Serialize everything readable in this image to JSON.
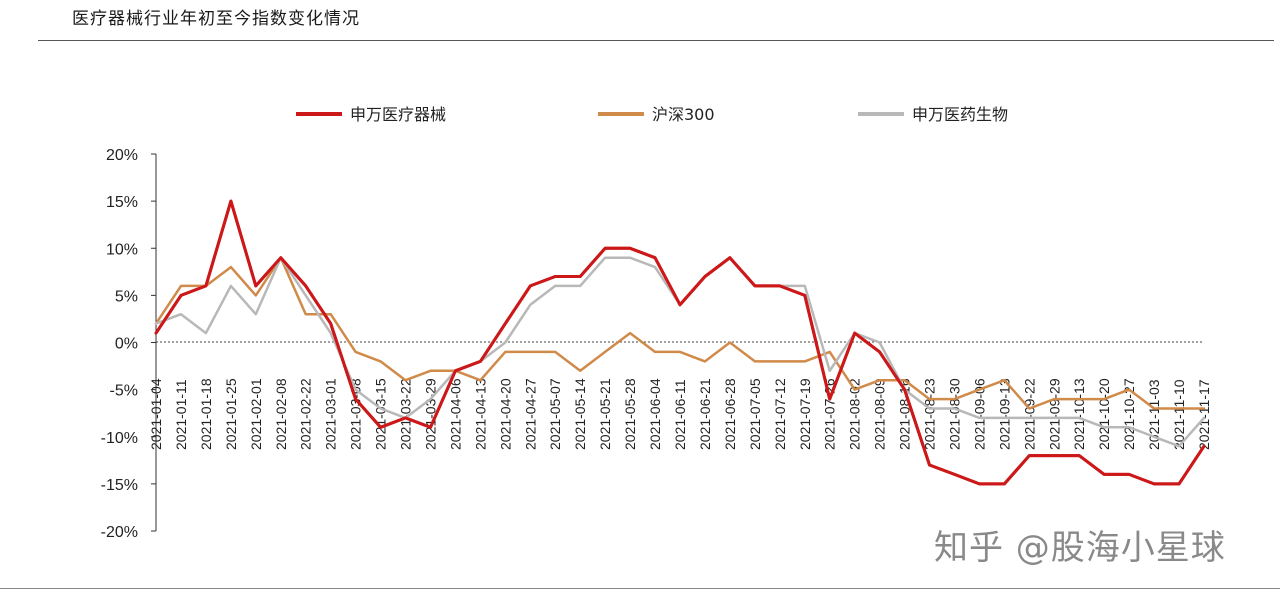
{
  "page_title": "医疗器械行业年初至今指数变化情况",
  "watermark": "知乎 @股海小星球",
  "chart_data": {
    "type": "line",
    "title": "",
    "xlabel": "",
    "ylabel": "",
    "ylim": [
      -20,
      20
    ],
    "yticks": [
      20,
      15,
      10,
      5,
      0,
      -5,
      -10,
      -15,
      -20
    ],
    "ytick_labels": [
      "20%",
      "15%",
      "10%",
      "5%",
      "0%",
      "-5%",
      "-10%",
      "-15%",
      "-20%"
    ],
    "grid": false,
    "legend_position": "top",
    "colors": {
      "red": "#cc1818",
      "orange": "#d08a4a",
      "gray": "#b8b8b8"
    },
    "x": [
      "2021-01-04",
      "2021-01-11",
      "2021-01-18",
      "2021-01-25",
      "2021-02-01",
      "2021-02-08",
      "2021-02-22",
      "2021-03-01",
      "2021-03-08",
      "2021-03-15",
      "2021-03-22",
      "2021-03-29",
      "2021-04-06",
      "2021-04-13",
      "2021-04-20",
      "2021-04-27",
      "2021-05-07",
      "2021-05-14",
      "2021-05-21",
      "2021-05-28",
      "2021-06-04",
      "2021-06-11",
      "2021-06-21",
      "2021-06-28",
      "2021-07-05",
      "2021-07-12",
      "2021-07-19",
      "2021-07-26",
      "2021-08-02",
      "2021-08-09",
      "2021-08-16",
      "2021-08-23",
      "2021-08-30",
      "2021-09-06",
      "2021-09-13",
      "2021-09-22",
      "2021-09-29",
      "2021-10-13",
      "2021-10-20",
      "2021-10-27",
      "2021-11-03",
      "2021-11-10",
      "2021-11-17"
    ],
    "series": [
      {
        "name": "申万医疗器械",
        "color": "#cc1818",
        "values": [
          1,
          5,
          6,
          15,
          6,
          9,
          6,
          2,
          -6,
          -9,
          -8,
          -9,
          -3,
          -2,
          2,
          6,
          7,
          7,
          10,
          10,
          9,
          4,
          7,
          9,
          6,
          6,
          5,
          -6,
          1,
          -1,
          -5,
          -13,
          -14,
          -15,
          -15,
          -12,
          -12,
          -12,
          -14,
          -14,
          -15,
          -15,
          -11
        ]
      },
      {
        "name": "沪深300",
        "color": "#d08a4a",
        "values": [
          2,
          6,
          6,
          8,
          5,
          9,
          3,
          3,
          -1,
          -2,
          -4,
          -3,
          -3,
          -4,
          -1,
          -1,
          -1,
          -3,
          -1,
          1,
          -1,
          -1,
          -2,
          0,
          -2,
          -2,
          -2,
          -1,
          -5,
          -4,
          -4,
          -6,
          -6,
          -5,
          -4,
          -7,
          -6,
          -6,
          -6,
          -5,
          -7,
          -7,
          -7
        ]
      },
      {
        "name": "申万医药生物",
        "color": "#b8b8b8",
        "values": [
          2,
          3,
          1,
          6,
          3,
          9,
          5,
          1,
          -5,
          -7,
          -8,
          -6,
          -3,
          -2,
          0,
          4,
          6,
          6,
          9,
          9,
          8,
          4,
          7,
          9,
          6,
          6,
          6,
          -3,
          1,
          0,
          -5,
          -7,
          -7,
          -8,
          -8,
          -8,
          -8,
          -8,
          -9,
          -9,
          -10,
          -11,
          -8
        ]
      }
    ]
  }
}
